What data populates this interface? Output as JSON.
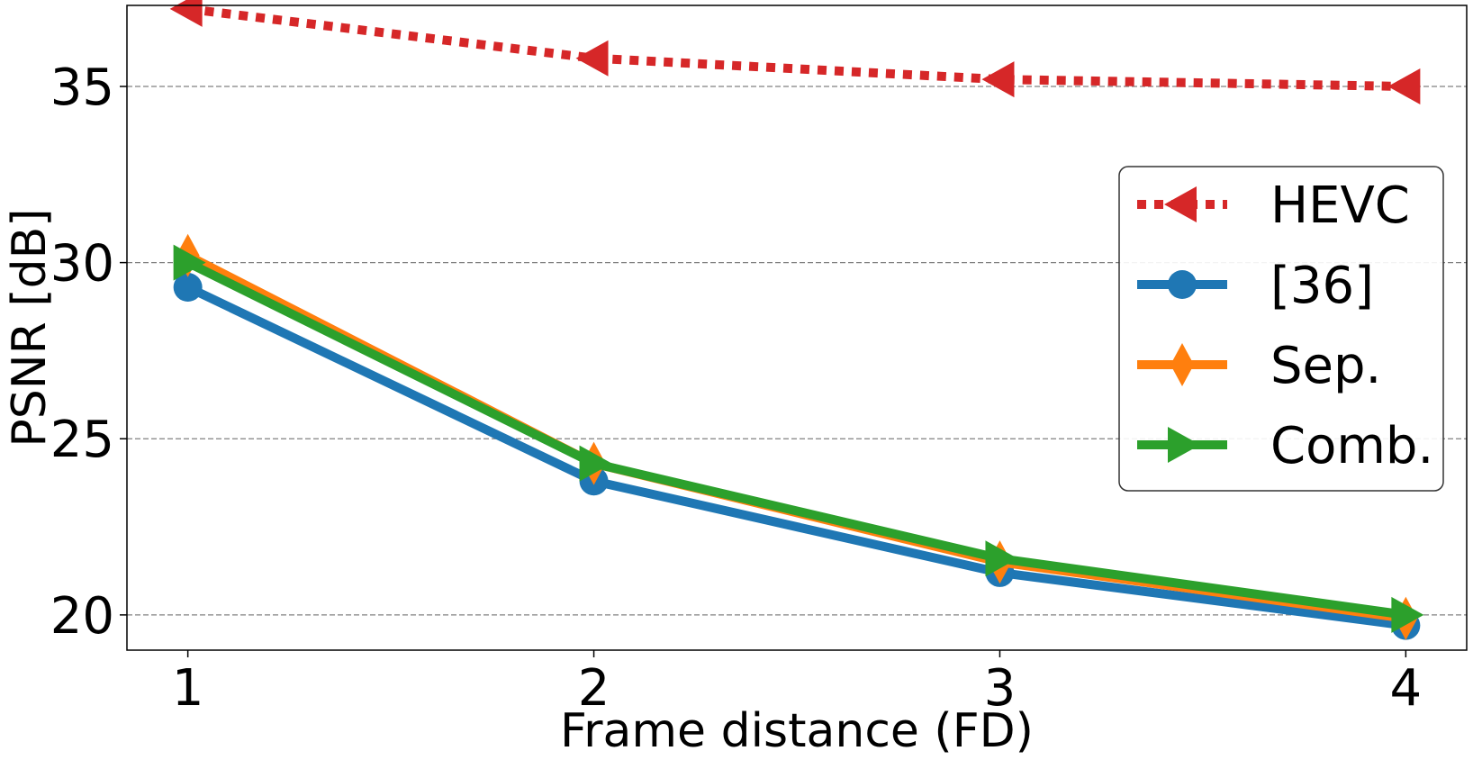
{
  "chart_data": {
    "type": "line",
    "title": "",
    "xlabel": "Frame distance (FD)",
    "ylabel": "PSNR [dB]",
    "x": [
      1,
      2,
      3,
      4
    ],
    "xticks": [
      "1",
      "2",
      "3",
      "4"
    ],
    "yticks": [
      "20",
      "25",
      "30",
      "35"
    ],
    "ylim": [
      19.0,
      37.3
    ],
    "grid": "horizontal dashed",
    "legend_position": "center-right",
    "series": [
      {
        "name": "HEVC",
        "values": [
          37.2,
          35.8,
          35.2,
          35.0
        ],
        "color": "#d62728",
        "line_style": "dotted",
        "marker": "triangle-left"
      },
      {
        "name": "[36]",
        "values": [
          29.3,
          23.8,
          21.2,
          19.7
        ],
        "color": "#1f77b4",
        "line_style": "solid",
        "marker": "circle"
      },
      {
        "name": "Sep.",
        "values": [
          30.2,
          24.3,
          21.5,
          19.9
        ],
        "color": "#ff7f0e",
        "line_style": "solid",
        "marker": "thin-diamond"
      },
      {
        "name": "Comb.",
        "values": [
          30.0,
          24.3,
          21.6,
          20.0
        ],
        "color": "#2ca02c",
        "line_style": "solid",
        "marker": "triangle-right"
      }
    ]
  }
}
